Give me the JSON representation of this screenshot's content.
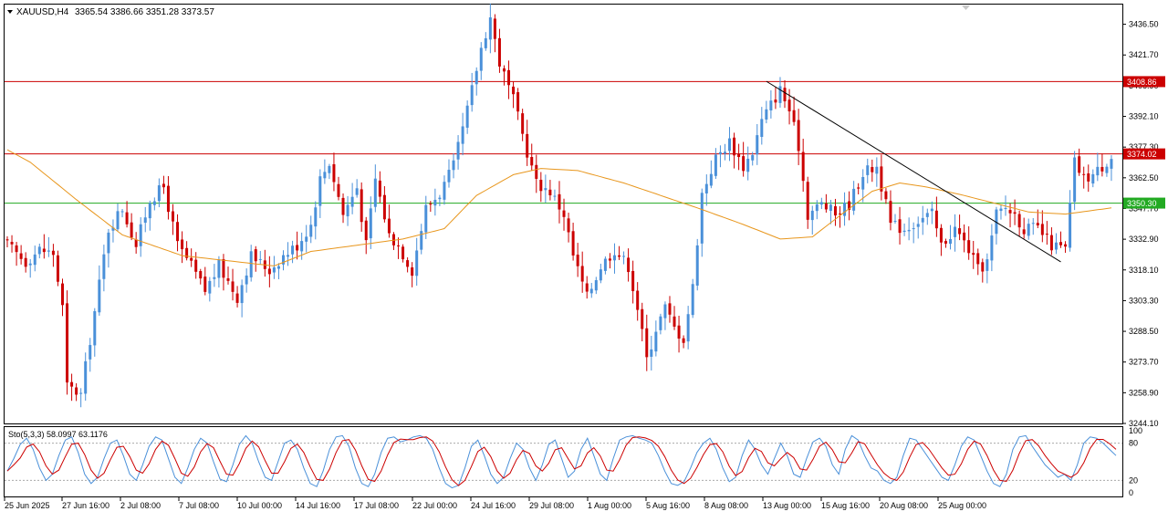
{
  "header": {
    "symbol_label": "XAUUSD,H4",
    "ohlc_label": "3365.54 3386.66 3351.28 3373.57"
  },
  "indicator": {
    "label": "Sto(5,3,3) 58.0997 63.1176",
    "levels": [
      100,
      80,
      20,
      0
    ],
    "k_color": "#4a90d9",
    "d_color": "#cc0000",
    "k_values": [
      35,
      55,
      78,
      88,
      70,
      40,
      20,
      30,
      60,
      85,
      90,
      65,
      30,
      15,
      25,
      55,
      80,
      85,
      60,
      30,
      20,
      45,
      75,
      90,
      85,
      55,
      25,
      15,
      40,
      70,
      88,
      80,
      50,
      22,
      18,
      45,
      78,
      92,
      80,
      50,
      25,
      20,
      50,
      80,
      85,
      70,
      40,
      15,
      10,
      35,
      70,
      90,
      92,
      75,
      40,
      15,
      10,
      30,
      65,
      88,
      90,
      82,
      85,
      90,
      92,
      88,
      70,
      40,
      15,
      8,
      12,
      40,
      75,
      85,
      60,
      30,
      15,
      25,
      55,
      80,
      70,
      40,
      20,
      45,
      78,
      85,
      55,
      25,
      35,
      70,
      88,
      60,
      30,
      20,
      55,
      85,
      90,
      92,
      88,
      85,
      80,
      60,
      35,
      15,
      12,
      18,
      40,
      65,
      80,
      88,
      70,
      40,
      18,
      25,
      60,
      85,
      70,
      45,
      30,
      55,
      80,
      60,
      30,
      25,
      55,
      82,
      88,
      75,
      45,
      30,
      70,
      92,
      85,
      60,
      40,
      35,
      20,
      15,
      25,
      60,
      88,
      85,
      70,
      55,
      40,
      25,
      20,
      45,
      75,
      90,
      85,
      60,
      35,
      15,
      10,
      30,
      70,
      90,
      92,
      75,
      60,
      45,
      35,
      25,
      30,
      20,
      45,
      80,
      90,
      88,
      80,
      70,
      60
    ]
  },
  "price_axis": {
    "ticks": [
      "3436.50",
      "3421.70",
      "3406.90",
      "3392.10",
      "3377.30",
      "3362.50",
      "3347.70",
      "3332.90",
      "3318.10",
      "3303.30",
      "3288.50",
      "3273.70",
      "3258.90",
      "3244.10"
    ]
  },
  "time_axis": {
    "ticks": [
      "25 Jun 2025",
      "27 Jun 16:00",
      "2 Jul 08:00",
      "7 Jul 08:00",
      "10 Jul 00:00",
      "14 Jul 16:00",
      "17 Jul 08:00",
      "22 Jul 00:00",
      "24 Jul 16:00",
      "29 Jul 08:00",
      "1 Aug 00:00",
      "5 Aug 16:00",
      "8 Aug 08:00",
      "13 Aug 00:00",
      "15 Aug 16:00",
      "20 Aug 08:00",
      "25 Aug 00:00"
    ]
  },
  "chart_data": {
    "type": "candlestick",
    "symbol": "XAUUSD",
    "timeframe": "H4",
    "ylim": [
      3244.1,
      3446.0
    ],
    "bull_color": "#4a90d9",
    "bear_color": "#cc0000",
    "ma_color": "#e8961c",
    "horizontal_lines": [
      {
        "price": 3408.86,
        "label": "3408.86",
        "color": "#cc0000"
      },
      {
        "price": 3374.02,
        "label": "3374.02",
        "color": "#cc0000"
      },
      {
        "price": 3350.3,
        "label": "3350.30",
        "color": "#22aa22"
      }
    ],
    "trendline": {
      "from": {
        "bar": 165,
        "price": 3409.0
      },
      "to": {
        "bar": 229,
        "price": 3322.0
      },
      "color": "#000000"
    },
    "close_path": [
      [
        0,
        3330
      ],
      [
        4,
        3322
      ],
      [
        7,
        3328
      ],
      [
        10,
        3326
      ],
      [
        12,
        3300
      ],
      [
        13,
        3262
      ],
      [
        16,
        3258
      ],
      [
        22,
        3338
      ],
      [
        25,
        3348
      ],
      [
        28,
        3330
      ],
      [
        31,
        3352
      ],
      [
        34,
        3358
      ],
      [
        37,
        3330
      ],
      [
        40,
        3320
      ],
      [
        43,
        3308
      ],
      [
        46,
        3320
      ],
      [
        50,
        3305
      ],
      [
        53,
        3325
      ],
      [
        57,
        3318
      ],
      [
        60,
        3325
      ],
      [
        63,
        3330
      ],
      [
        66,
        3340
      ],
      [
        68,
        3362
      ],
      [
        70,
        3370
      ],
      [
        73,
        3345
      ],
      [
        76,
        3358
      ],
      [
        78,
        3330
      ],
      [
        80,
        3362
      ],
      [
        83,
        3335
      ],
      [
        85,
        3330
      ],
      [
        88,
        3318
      ],
      [
        91,
        3348
      ],
      [
        94,
        3355
      ],
      [
        97,
        3368
      ],
      [
        100,
        3395
      ],
      [
        103,
        3425
      ],
      [
        105,
        3440
      ],
      [
        107,
        3418
      ],
      [
        110,
        3400
      ],
      [
        113,
        3375
      ],
      [
        115,
        3360
      ],
      [
        118,
        3356
      ],
      [
        121,
        3345
      ],
      [
        123,
        3325
      ],
      [
        126,
        3305
      ],
      [
        129,
        3320
      ],
      [
        132,
        3328
      ],
      [
        135,
        3320
      ],
      [
        137,
        3300
      ],
      [
        139,
        3275
      ],
      [
        141,
        3290
      ],
      [
        143,
        3300
      ],
      [
        145,
        3290
      ],
      [
        147,
        3285
      ],
      [
        149,
        3310
      ],
      [
        151,
        3355
      ],
      [
        154,
        3372
      ],
      [
        157,
        3380
      ],
      [
        160,
        3368
      ],
      [
        162,
        3375
      ],
      [
        164,
        3390
      ],
      [
        166,
        3398
      ],
      [
        168,
        3405
      ],
      [
        170,
        3395
      ],
      [
        172,
        3378
      ],
      [
        174,
        3345
      ],
      [
        177,
        3350
      ],
      [
        180,
        3345
      ],
      [
        183,
        3350
      ],
      [
        186,
        3365
      ],
      [
        189,
        3368
      ],
      [
        192,
        3340
      ],
      [
        195,
        3338
      ],
      [
        198,
        3342
      ],
      [
        201,
        3345
      ],
      [
        203,
        3330
      ],
      [
        206,
        3338
      ],
      [
        209,
        3328
      ],
      [
        211,
        3318
      ],
      [
        213,
        3322
      ],
      [
        215,
        3345
      ],
      [
        217,
        3348
      ],
      [
        219,
        3345
      ],
      [
        221,
        3338
      ],
      [
        224,
        3338
      ],
      [
        227,
        3330
      ],
      [
        230,
        3328
      ],
      [
        232,
        3370
      ],
      [
        234,
        3362
      ],
      [
        236,
        3364
      ],
      [
        238,
        3368
      ],
      [
        240,
        3373
      ]
    ],
    "ma_path": [
      [
        0,
        3376
      ],
      [
        5,
        3370
      ],
      [
        15,
        3352
      ],
      [
        25,
        3335
      ],
      [
        38,
        3325
      ],
      [
        50,
        3322
      ],
      [
        58,
        3320
      ],
      [
        66,
        3327
      ],
      [
        76,
        3330
      ],
      [
        86,
        3333
      ],
      [
        95,
        3338
      ],
      [
        102,
        3354
      ],
      [
        110,
        3364
      ],
      [
        116,
        3367
      ],
      [
        124,
        3366
      ],
      [
        134,
        3360
      ],
      [
        142,
        3354
      ],
      [
        150,
        3348
      ],
      [
        160,
        3340
      ],
      [
        168,
        3333
      ],
      [
        175,
        3334
      ],
      [
        182,
        3346
      ],
      [
        188,
        3356
      ],
      [
        194,
        3360
      ],
      [
        200,
        3358
      ],
      [
        208,
        3354
      ],
      [
        215,
        3350
      ],
      [
        222,
        3346
      ],
      [
        230,
        3345
      ],
      [
        240,
        3348
      ]
    ],
    "bar_count": 241
  }
}
